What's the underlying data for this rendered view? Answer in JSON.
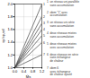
{
  "chart_data": {
    "type": "line",
    "title": "",
    "xlabel": "Ṁs",
    "ylabel": "sp/sp,ref",
    "x": [
      0,
      1.2
    ],
    "series": [
      {
        "name": "1",
        "color": "#444444",
        "values": [
          1.0,
          1.996
        ]
      },
      {
        "name": "2",
        "color": "#444444",
        "values": [
          1.0,
          1.804
        ]
      },
      {
        "name": "3",
        "color": "#444444",
        "values": [
          1.0,
          1.696
        ]
      },
      {
        "name": "4",
        "color": "#444444",
        "values": [
          1.0,
          1.6
        ]
      },
      {
        "name": "5",
        "color": "#444444",
        "values": [
          1.0,
          1.504
        ]
      },
      {
        "name": "6",
        "color": "#444444",
        "values": [
          1.0,
          1.396
        ]
      },
      {
        "name": "7",
        "color": "#444444",
        "values": [
          1.0,
          1.204
        ]
      }
    ],
    "xlim": [
      0,
      1.2
    ],
    "ylim": [
      1.0,
      2.0
    ],
    "xticks": [
      {
        "value": 0,
        "label": "0.0"
      },
      0.4,
      0.8,
      1.2
    ],
    "yticks": [
      {
        "value": 1.0,
        "label": "1.0"
      },
      1.2,
      1.4,
      1.6,
      1.8,
      {
        "value": 2.0,
        "label": "2.0"
      }
    ],
    "grid": true,
    "annotations": [
      "1  un réseau uni-parallèle\n    sans accumulation",
      "2  idem \"1\" avec\n    accumulation",
      "3  un réseau uni-série\n    sans accumulation",
      "4  deux réseaux mixtes\n    sans accumulation",
      "5  deux réseaux mixtes\n    avec accumulation",
      "6  deux réseaux en série\n    sans échangeur\n    de chaleur",
      "7  idem 6\n    avec échangeur\n    de chaleur ajouté"
    ]
  }
}
